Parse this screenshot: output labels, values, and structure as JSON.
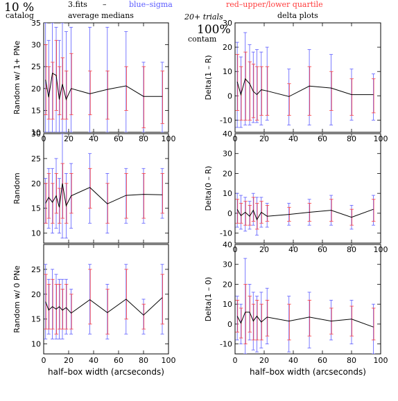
{
  "header": {
    "percent": "10 %",
    "catalog": "catalog",
    "fits": "3.fits",
    "dash": "–",
    "average_medians": "average medians",
    "blue_sigma": "blue–sigma",
    "red_quartile": "red–upper/lower quartile",
    "trials": "20+ trials",
    "delta_plots": "delta plots",
    "contam_pct": "100%",
    "contam": "contam"
  },
  "colors": {
    "line": "#000000",
    "sigma": "#5a5aff",
    "quartile": "#ff3c3c"
  },
  "chart_data": [
    {
      "id": "p1",
      "type": "line",
      "ylabel": "Random w/ 1+ PNe",
      "xlim": [
        0,
        100
      ],
      "ylim": [
        10,
        35
      ],
      "xticks": [
        0,
        20,
        40,
        60,
        80,
        100
      ],
      "yticks": [
        10,
        15,
        20,
        25,
        30,
        35
      ],
      "show_xticklabels": true,
      "xlabel": "",
      "points": [
        {
          "x": 1.5,
          "y": 22,
          "s": [
            10,
            35
          ],
          "q": [
            14,
            30
          ]
        },
        {
          "x": 4,
          "y": 18,
          "s": [
            10,
            31
          ],
          "q": [
            13,
            25
          ]
        },
        {
          "x": 7,
          "y": 23.5,
          "s": [
            10,
            35
          ],
          "q": [
            13,
            26
          ]
        },
        {
          "x": 10,
          "y": 23,
          "s": [
            10,
            34
          ],
          "q": [
            15,
            31
          ]
        },
        {
          "x": 12.5,
          "y": 17.5,
          "s": [
            10,
            31
          ],
          "q": [
            14,
            25
          ]
        },
        {
          "x": 15,
          "y": 21,
          "s": [
            10,
            35
          ],
          "q": [
            13,
            27
          ]
        },
        {
          "x": 18,
          "y": 17.5,
          "s": [
            10,
            33
          ],
          "q": [
            13,
            24
          ]
        },
        {
          "x": 22,
          "y": 20,
          "s": [
            10,
            34
          ],
          "q": [
            14,
            28
          ]
        },
        {
          "x": 37,
          "y": 18.8,
          "s": [
            10,
            34
          ],
          "q": [
            14,
            24
          ]
        },
        {
          "x": 51,
          "y": 19.8,
          "s": [
            10,
            34
          ],
          "q": [
            13,
            24
          ]
        },
        {
          "x": 66,
          "y": 20.6,
          "s": [
            10,
            33
          ],
          "q": [
            15,
            25
          ]
        },
        {
          "x": 80,
          "y": 18.2,
          "s": [
            10,
            26
          ],
          "q": [
            11,
            25
          ]
        },
        {
          "x": 95,
          "y": 18.2,
          "s": [
            10,
            26
          ],
          "q": [
            12,
            24
          ]
        }
      ]
    },
    {
      "id": "p2",
      "type": "line",
      "ylabel": "Delta(1 – R)",
      "xlim": [
        0,
        100
      ],
      "ylim": [
        -15,
        30
      ],
      "xticks": [
        0,
        20,
        40,
        60,
        80,
        100
      ],
      "yticks": [
        -10,
        0,
        10,
        20,
        30
      ],
      "show_xticklabels": true,
      "xlabel": "",
      "points": [
        {
          "x": 1.5,
          "y": 5.8,
          "s": [
            -13,
            22
          ],
          "q": [
            -6,
            17
          ]
        },
        {
          "x": 4,
          "y": 0.5,
          "s": [
            -13,
            16
          ],
          "q": [
            -10,
            12
          ]
        },
        {
          "x": 7,
          "y": 7,
          "s": [
            -12,
            26
          ],
          "q": [
            -10,
            18
          ]
        },
        {
          "x": 10,
          "y": 5,
          "s": [
            -12,
            21
          ],
          "q": [
            -10,
            14
          ]
        },
        {
          "x": 12.5,
          "y": 1.8,
          "s": [
            -11,
            18
          ],
          "q": [
            -9,
            13
          ]
        },
        {
          "x": 15,
          "y": 0.5,
          "s": [
            -11,
            19
          ],
          "q": [
            -10,
            12
          ]
        },
        {
          "x": 18,
          "y": 2.5,
          "s": [
            -12,
            18
          ],
          "q": [
            -8,
            12
          ]
        },
        {
          "x": 22,
          "y": 2,
          "s": [
            -10,
            20
          ],
          "q": [
            -8,
            12
          ]
        },
        {
          "x": 37,
          "y": -0.3,
          "s": [
            -12,
            11
          ],
          "q": [
            -8,
            5
          ]
        },
        {
          "x": 51,
          "y": 4,
          "s": [
            -12,
            19
          ],
          "q": [
            -8,
            12
          ]
        },
        {
          "x": 66,
          "y": 3.2,
          "s": [
            -12,
            17
          ],
          "q": [
            -6,
            10
          ]
        },
        {
          "x": 80,
          "y": 0.5,
          "s": [
            -10,
            11
          ],
          "q": [
            -8,
            7
          ]
        },
        {
          "x": 95,
          "y": 0.5,
          "s": [
            -10,
            9
          ],
          "q": [
            -7,
            7
          ]
        }
      ]
    },
    {
      "id": "p3",
      "type": "line",
      "ylabel": "Random",
      "xlim": [
        0,
        100
      ],
      "ylim": [
        8,
        30
      ],
      "xticks": [
        0,
        20,
        40,
        60,
        80,
        100
      ],
      "yticks": [
        10,
        15,
        20,
        25,
        30
      ],
      "show_xticklabels": false,
      "xlabel": "",
      "points": [
        {
          "x": 1.5,
          "y": 16,
          "s": [
            12,
            21
          ],
          "q": [
            12,
            20
          ]
        },
        {
          "x": 4,
          "y": 17.2,
          "s": [
            11,
            23
          ],
          "q": [
            13,
            22
          ]
        },
        {
          "x": 7,
          "y": 16.2,
          "s": [
            10,
            23
          ],
          "q": [
            12,
            20
          ]
        },
        {
          "x": 10,
          "y": 17.5,
          "s": [
            11,
            25
          ],
          "q": [
            14,
            22
          ]
        },
        {
          "x": 12.5,
          "y": 15.2,
          "s": [
            10,
            21
          ],
          "q": [
            12,
            19
          ]
        },
        {
          "x": 15,
          "y": 20,
          "s": [
            9,
            30
          ],
          "q": [
            13,
            24
          ]
        },
        {
          "x": 18,
          "y": 15.5,
          "s": [
            9,
            22
          ],
          "q": [
            12,
            20
          ]
        },
        {
          "x": 22,
          "y": 17.5,
          "s": [
            11,
            24
          ],
          "q": [
            14,
            22
          ]
        },
        {
          "x": 37,
          "y": 19.2,
          "s": [
            12,
            26
          ],
          "q": [
            15,
            23
          ]
        },
        {
          "x": 51,
          "y": 15.9,
          "s": [
            10,
            22
          ],
          "q": [
            12,
            20
          ]
        },
        {
          "x": 66,
          "y": 17.6,
          "s": [
            12,
            23
          ],
          "q": [
            13,
            22
          ]
        },
        {
          "x": 80,
          "y": 17.8,
          "s": [
            12,
            23
          ],
          "q": [
            13,
            22
          ]
        },
        {
          "x": 95,
          "y": 17.7,
          "s": [
            13,
            23
          ],
          "q": [
            14,
            22
          ]
        }
      ]
    },
    {
      "id": "p4",
      "type": "line",
      "ylabel": "Delta(0 – R)",
      "xlim": [
        0,
        100
      ],
      "ylim": [
        -15,
        40
      ],
      "xticks": [
        0,
        20,
        40,
        60,
        80,
        100
      ],
      "yticks": [
        -10,
        0,
        10,
        20,
        30,
        40
      ],
      "show_xticklabels": true,
      "xlabel": "",
      "points": [
        {
          "x": 1.5,
          "y": 2,
          "s": [
            -7,
            10
          ],
          "q": [
            -5,
            7
          ]
        },
        {
          "x": 4,
          "y": -1.2,
          "s": [
            -8,
            9
          ],
          "q": [
            -5,
            5
          ]
        },
        {
          "x": 7,
          "y": 0.5,
          "s": [
            -9,
            8
          ],
          "q": [
            -6,
            6
          ]
        },
        {
          "x": 10,
          "y": -1.5,
          "s": [
            -8,
            6
          ],
          "q": [
            -6,
            4
          ]
        },
        {
          "x": 12.5,
          "y": 1.5,
          "s": [
            -6,
            10
          ],
          "q": [
            -4,
            8
          ]
        },
        {
          "x": 15,
          "y": -3.2,
          "s": [
            -11,
            8
          ],
          "q": [
            -8,
            5
          ]
        },
        {
          "x": 18,
          "y": 0.5,
          "s": [
            -7,
            8
          ],
          "q": [
            -5,
            6
          ]
        },
        {
          "x": 22,
          "y": -1.5,
          "s": [
            -7,
            5
          ],
          "q": [
            -4,
            4
          ]
        },
        {
          "x": 37,
          "y": -0.6,
          "s": [
            -6,
            5
          ],
          "q": [
            -4,
            3
          ]
        },
        {
          "x": 51,
          "y": 0.5,
          "s": [
            -6,
            7
          ],
          "q": [
            -4,
            5
          ]
        },
        {
          "x": 66,
          "y": 1.5,
          "s": [
            -6,
            9
          ],
          "q": [
            -4,
            7
          ]
        },
        {
          "x": 80,
          "y": -2,
          "s": [
            -8,
            4
          ],
          "q": [
            -6,
            2
          ]
        },
        {
          "x": 95,
          "y": 2,
          "s": [
            -6,
            9
          ],
          "q": [
            -4,
            7
          ]
        }
      ]
    },
    {
      "id": "p5",
      "type": "line",
      "ylabel": "Random w/ 0 PNe",
      "xlim": [
        0,
        100
      ],
      "ylim": [
        8,
        30
      ],
      "xticks": [
        0,
        20,
        40,
        60,
        80,
        100
      ],
      "yticks": [
        10,
        15,
        20,
        25
      ],
      "show_xticklabels": true,
      "xlabel": "half–box width (arcseconds)",
      "points": [
        {
          "x": 1.5,
          "y": 18.5,
          "s": [
            11,
            26
          ],
          "q": [
            13,
            24
          ]
        },
        {
          "x": 4,
          "y": 16.8,
          "s": [
            12,
            23
          ],
          "q": [
            13,
            22
          ]
        },
        {
          "x": 7,
          "y": 17.5,
          "s": [
            11,
            25
          ],
          "q": [
            13,
            23
          ]
        },
        {
          "x": 10,
          "y": 17,
          "s": [
            11,
            24
          ],
          "q": [
            12,
            22
          ]
        },
        {
          "x": 12.5,
          "y": 17.5,
          "s": [
            11,
            23
          ],
          "q": [
            13,
            22
          ]
        },
        {
          "x": 15,
          "y": 16.8,
          "s": [
            11,
            23
          ],
          "q": [
            13,
            21
          ]
        },
        {
          "x": 18,
          "y": 17.3,
          "s": [
            12,
            23
          ],
          "q": [
            13,
            22
          ]
        },
        {
          "x": 22,
          "y": 16.2,
          "s": [
            12,
            21
          ],
          "q": [
            13,
            20
          ]
        },
        {
          "x": 37,
          "y": 18.9,
          "s": [
            12,
            26
          ],
          "q": [
            14,
            25
          ]
        },
        {
          "x": 51,
          "y": 16.3,
          "s": [
            11,
            22
          ],
          "q": [
            12,
            21
          ]
        },
        {
          "x": 66,
          "y": 19,
          "s": [
            12,
            26
          ],
          "q": [
            15,
            25
          ]
        },
        {
          "x": 80,
          "y": 15.8,
          "s": [
            12,
            19
          ],
          "q": [
            13,
            18
          ]
        },
        {
          "x": 95,
          "y": 19.3,
          "s": [
            12,
            26
          ],
          "q": [
            14,
            24
          ]
        }
      ]
    },
    {
      "id": "p6",
      "type": "line",
      "ylabel": "Delta(1 – 0)",
      "xlim": [
        0,
        100
      ],
      "ylim": [
        -15,
        40
      ],
      "xticks": [
        0,
        20,
        40,
        60,
        80,
        100
      ],
      "yticks": [
        -10,
        0,
        10,
        20,
        30,
        40
      ],
      "show_xticklabels": true,
      "xlabel": "half–box width (arcseconds)",
      "points": [
        {
          "x": 1.5,
          "y": 4,
          "s": [
            -8,
            14
          ],
          "q": [
            -4,
            12
          ]
        },
        {
          "x": 4,
          "y": 0.5,
          "s": [
            -10,
            10
          ],
          "q": [
            -7,
            8
          ]
        },
        {
          "x": 7,
          "y": 6,
          "s": [
            -15,
            33
          ],
          "q": [
            -10,
            20
          ]
        },
        {
          "x": 10,
          "y": 6,
          "s": [
            -8,
            20
          ],
          "q": [
            -4,
            14
          ]
        },
        {
          "x": 12.5,
          "y": 1.5,
          "s": [
            -13,
            16
          ],
          "q": [
            -8,
            10
          ]
        },
        {
          "x": 15,
          "y": 4,
          "s": [
            -14,
            14
          ],
          "q": [
            -8,
            12
          ]
        },
        {
          "x": 18,
          "y": 1,
          "s": [
            -12,
            16
          ],
          "q": [
            -8,
            10
          ]
        },
        {
          "x": 22,
          "y": 3.5,
          "s": [
            -10,
            18
          ],
          "q": [
            -6,
            12
          ]
        },
        {
          "x": 37,
          "y": 1.5,
          "s": [
            -14,
            14
          ],
          "q": [
            -8,
            10
          ]
        },
        {
          "x": 51,
          "y": 3.5,
          "s": [
            -12,
            16
          ],
          "q": [
            -6,
            12
          ]
        },
        {
          "x": 66,
          "y": 1.5,
          "s": [
            -8,
            12
          ],
          "q": [
            -5,
            8
          ]
        },
        {
          "x": 80,
          "y": 2.5,
          "s": [
            -10,
            12
          ],
          "q": [
            -6,
            9
          ]
        },
        {
          "x": 95,
          "y": -1.5,
          "s": [
            -15,
            10
          ],
          "q": [
            -8,
            8
          ]
        }
      ]
    }
  ]
}
